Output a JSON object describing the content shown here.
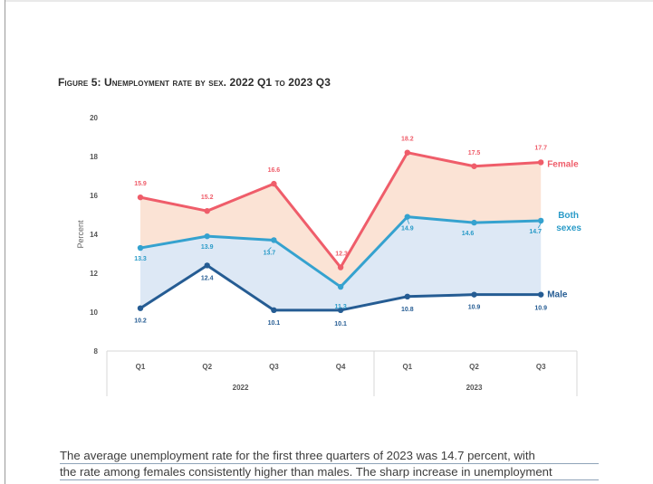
{
  "figure_title": "Figure 5: Unemployment rate by sex. 2022 Q1 to 2023 Q3",
  "colors": {
    "female": "#ef5d6a",
    "both": "#35a2cf",
    "male": "#255c93",
    "female_fill": "#fbe3d5",
    "both_fill": "#dde8f5",
    "both_label": "#2a9bc8"
  },
  "chart_data": {
    "type": "line",
    "title": "Unemployment rate by sex. 2022 Q1 to 2023 Q3",
    "ylabel": "Percent",
    "xlabel": "",
    "ylim": [
      8,
      20
    ],
    "yticks": [
      8,
      10,
      12,
      14,
      16,
      18,
      20
    ],
    "categories": [
      "Q1",
      "Q2",
      "Q3",
      "Q4",
      "Q1",
      "Q2",
      "Q3"
    ],
    "year_groups": [
      {
        "label": "2022",
        "from": 0,
        "to": 3
      },
      {
        "label": "2023",
        "from": 4,
        "to": 6
      }
    ],
    "series": [
      {
        "name": "Female",
        "label": "Female",
        "values": [
          15.9,
          15.2,
          16.6,
          12.3,
          18.2,
          17.5,
          17.7
        ],
        "value_labels": [
          "15.9",
          "15.2",
          "16.6",
          "12.3",
          "18.2",
          "17.5",
          "17.7"
        ]
      },
      {
        "name": "Both sexes",
        "label_lines": [
          "Both",
          "sexes"
        ],
        "values": [
          13.3,
          13.9,
          13.7,
          11.3,
          14.9,
          14.6,
          14.7
        ],
        "value_labels": [
          "13.3",
          "13.9",
          "13.7",
          "11.3",
          "14.9",
          "14.6",
          "14.7"
        ]
      },
      {
        "name": "Male",
        "label": "Male",
        "values": [
          10.2,
          12.4,
          10.1,
          10.1,
          10.8,
          10.9,
          10.9
        ],
        "value_labels": [
          "10.2",
          "12.4",
          "10.1",
          "10.1",
          "10.8",
          "10.9",
          "10.9"
        ]
      }
    ]
  },
  "body_text": {
    "line1": "The average unemployment rate for the first three quarters of 2023 was 14.7 percent, with",
    "line2": "the rate among females consistently higher than males. The sharp increase in unemployment"
  }
}
